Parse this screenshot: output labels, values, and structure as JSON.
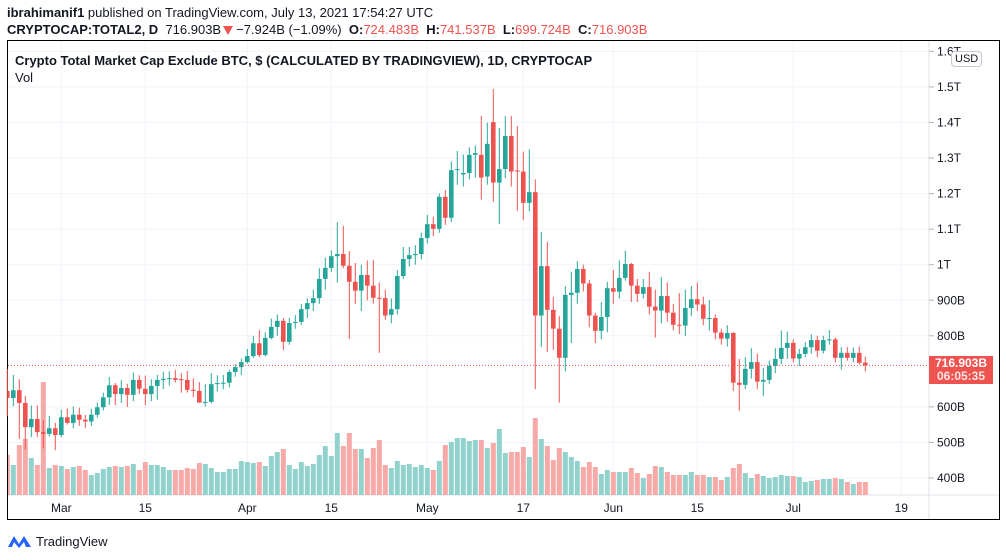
{
  "header": {
    "author": "ibrahimanif1",
    "published": " published on TradingView.com, July 13, 2021 17:54:27 UTC",
    "symbol": "CRYPTOCAP:TOTAL2, D",
    "last": "716.903B",
    "direction_icon": "down-triangle-icon",
    "change": "−7.924B (−1.09%)",
    "o_label": "O:",
    "o": "724.483B",
    "h_label": "H:",
    "h": "741.537B",
    "l_label": "L:",
    "l": "699.724B",
    "c_label": "C:",
    "c": "716.903B"
  },
  "legend": {
    "title": "Crypto Total Market Cap Exclude BTC, $ (CALCULATED BY TRADINGVIEW), 1D, CRYPTOCAP",
    "volume": "Vol"
  },
  "price_axis": {
    "currency": "USD",
    "last_price": "716.903B",
    "countdown": "06:05:35"
  },
  "footer": {
    "brand": "TradingView"
  },
  "colors": {
    "up": "#26a69a",
    "down": "#ef5350",
    "vol_up": "#92d2cc",
    "vol_down": "#f7a9a7",
    "grid": "#f0f3fa"
  },
  "chart_data": {
    "type": "candlestick",
    "title": "Crypto Total Market Cap Exclude BTC, $ (CALCULATED BY TRADINGVIEW), 1D, CRYPTOCAP",
    "units": "billions USD",
    "scale": "linear",
    "grid": true,
    "ylim": [
      360,
      1620
    ],
    "y_ticks": [
      {
        "value": 400,
        "label": "400B"
      },
      {
        "value": 500,
        "label": "500B"
      },
      {
        "value": 600,
        "label": "600B"
      },
      {
        "value": 800,
        "label": "800B"
      },
      {
        "value": 900,
        "label": "900B"
      },
      {
        "value": 1000,
        "label": "1T"
      },
      {
        "value": 1100,
        "label": "1.1T"
      },
      {
        "value": 1200,
        "label": "1.2T"
      },
      {
        "value": 1300,
        "label": "1.3T"
      },
      {
        "value": 1400,
        "label": "1.4T"
      },
      {
        "value": 1500,
        "label": "1.5T"
      },
      {
        "value": 1600,
        "label": "1.6T"
      }
    ],
    "x_ticks": [
      {
        "date": "2021-03-01",
        "label": "Mar"
      },
      {
        "date": "2021-03-15",
        "label": "15"
      },
      {
        "date": "2021-04-01",
        "label": "Apr"
      },
      {
        "date": "2021-04-15",
        "label": "15"
      },
      {
        "date": "2021-05-01",
        "label": "May"
      },
      {
        "date": "2021-05-17",
        "label": "17"
      },
      {
        "date": "2021-06-01",
        "label": "Jun"
      },
      {
        "date": "2021-06-15",
        "label": "15"
      },
      {
        "date": "2021-07-01",
        "label": "Jul"
      },
      {
        "date": "2021-07-19",
        "label": "19"
      }
    ],
    "columns": [
      "date",
      "open",
      "high",
      "low",
      "close",
      "relative_volume"
    ],
    "candles": [
      [
        "2021-02-20",
        645,
        707,
        574,
        625,
        40
      ],
      [
        "2021-02-21",
        625,
        690,
        602,
        647,
        30
      ],
      [
        "2021-02-22",
        647,
        678,
        510,
        611,
        50
      ],
      [
        "2021-02-23",
        611,
        631,
        480,
        543,
        56
      ],
      [
        "2021-02-24",
        543,
        604,
        515,
        566,
        37
      ],
      [
        "2021-02-25",
        566,
        604,
        515,
        529,
        30
      ],
      [
        "2021-02-26",
        529,
        563,
        483,
        524,
        113
      ],
      [
        "2021-02-27",
        524,
        575,
        517,
        540,
        27
      ],
      [
        "2021-02-28",
        540,
        555,
        478,
        521,
        30
      ],
      [
        "2021-03-01",
        521,
        592,
        515,
        571,
        29
      ],
      [
        "2021-03-02",
        571,
        596,
        550,
        555,
        26
      ],
      [
        "2021-03-03",
        555,
        601,
        540,
        578,
        28
      ],
      [
        "2021-03-04",
        578,
        598,
        547,
        564,
        29
      ],
      [
        "2021-03-05",
        564,
        578,
        540,
        559,
        25
      ],
      [
        "2021-03-06",
        559,
        595,
        546,
        578,
        20
      ],
      [
        "2021-03-07",
        578,
        612,
        570,
        599,
        22
      ],
      [
        "2021-03-08",
        599,
        640,
        590,
        627,
        26
      ],
      [
        "2021-03-09",
        627,
        684,
        606,
        661,
        28
      ],
      [
        "2021-03-10",
        661,
        667,
        605,
        636,
        29
      ],
      [
        "2021-03-11",
        636,
        675,
        612,
        653,
        28
      ],
      [
        "2021-03-12",
        653,
        665,
        600,
        634,
        29
      ],
      [
        "2021-03-13",
        634,
        697,
        616,
        676,
        31
      ],
      [
        "2021-03-14",
        676,
        689,
        636,
        651,
        25
      ],
      [
        "2021-03-15",
        651,
        688,
        605,
        636,
        33
      ],
      [
        "2021-03-16",
        636,
        678,
        616,
        659,
        30
      ],
      [
        "2021-03-17",
        659,
        690,
        620,
        676,
        30
      ],
      [
        "2021-03-18",
        676,
        699,
        650,
        679,
        28
      ],
      [
        "2021-03-19",
        679,
        700,
        660,
        681,
        25
      ],
      [
        "2021-03-20",
        681,
        704,
        669,
        676,
        25
      ],
      [
        "2021-03-21",
        678,
        695,
        640,
        676,
        25
      ],
      [
        "2021-03-22",
        676,
        701,
        640,
        648,
        27
      ],
      [
        "2021-03-23",
        648,
        680,
        627,
        645,
        26
      ],
      [
        "2021-03-24",
        645,
        670,
        622,
        612,
        32
      ],
      [
        "2021-03-25",
        612,
        664,
        601,
        614,
        31
      ],
      [
        "2021-03-26",
        614,
        695,
        610,
        664,
        27
      ],
      [
        "2021-03-27",
        664,
        689,
        643,
        667,
        23
      ],
      [
        "2021-03-28",
        667,
        690,
        650,
        668,
        23
      ],
      [
        "2021-03-29",
        668,
        705,
        655,
        698,
        26
      ],
      [
        "2021-03-30",
        698,
        720,
        685,
        712,
        26
      ],
      [
        "2021-03-31",
        712,
        736,
        690,
        726,
        34
      ],
      [
        "2021-04-01",
        726,
        763,
        722,
        743,
        33
      ],
      [
        "2021-04-02",
        743,
        800,
        738,
        779,
        32
      ],
      [
        "2021-04-03",
        779,
        816,
        740,
        746,
        33
      ],
      [
        "2021-04-04",
        746,
        810,
        742,
        794,
        29
      ],
      [
        "2021-04-05",
        794,
        848,
        790,
        825,
        39
      ],
      [
        "2021-04-06",
        825,
        860,
        800,
        842,
        43
      ],
      [
        "2021-04-07",
        842,
        850,
        760,
        783,
        46
      ],
      [
        "2021-04-08",
        783,
        850,
        775,
        836,
        30
      ],
      [
        "2021-04-09",
        836,
        858,
        820,
        839,
        26
      ],
      [
        "2021-04-10",
        839,
        890,
        830,
        875,
        33
      ],
      [
        "2021-04-11",
        875,
        905,
        850,
        892,
        29
      ],
      [
        "2021-04-12",
        892,
        930,
        870,
        906,
        31
      ],
      [
        "2021-04-13",
        906,
        990,
        890,
        960,
        40
      ],
      [
        "2021-04-14",
        960,
        1020,
        930,
        991,
        49
      ],
      [
        "2021-04-15",
        991,
        1040,
        980,
        1024,
        39
      ],
      [
        "2021-04-16",
        1024,
        1120,
        950,
        1030,
        62
      ],
      [
        "2021-04-17",
        1030,
        1109,
        990,
        997,
        49
      ],
      [
        "2021-04-18",
        997,
        1038,
        791,
        952,
        62
      ],
      [
        "2021-04-19",
        952,
        1005,
        890,
        927,
        46
      ],
      [
        "2021-04-20",
        927,
        1000,
        870,
        971,
        46
      ],
      [
        "2021-04-21",
        971,
        1012,
        900,
        941,
        37
      ],
      [
        "2021-04-22",
        941,
        1014,
        890,
        907,
        47
      ],
      [
        "2021-04-23",
        907,
        950,
        752,
        906,
        55
      ],
      [
        "2021-04-24",
        906,
        930,
        845,
        857,
        30
      ],
      [
        "2021-04-25",
        859,
        905,
        835,
        875,
        27
      ],
      [
        "2021-04-26",
        875,
        985,
        860,
        968,
        34
      ],
      [
        "2021-04-27",
        968,
        1050,
        960,
        1016,
        30
      ],
      [
        "2021-04-28",
        1016,
        1050,
        995,
        1027,
        31
      ],
      [
        "2021-04-29",
        1027,
        1055,
        1000,
        1030,
        28
      ],
      [
        "2021-04-30",
        1030,
        1090,
        1015,
        1075,
        30
      ],
      [
        "2021-05-01",
        1075,
        1140,
        1060,
        1114,
        27
      ],
      [
        "2021-05-02",
        1114,
        1135,
        1080,
        1101,
        25
      ],
      [
        "2021-05-03",
        1101,
        1200,
        1090,
        1191,
        34
      ],
      [
        "2021-05-04",
        1191,
        1210,
        1112,
        1132,
        50
      ],
      [
        "2021-05-05",
        1132,
        1290,
        1120,
        1266,
        53
      ],
      [
        "2021-05-06",
        1266,
        1320,
        1225,
        1269,
        57
      ],
      [
        "2021-05-07",
        1254,
        1310,
        1220,
        1258,
        57
      ],
      [
        "2021-05-08",
        1258,
        1330,
        1240,
        1309,
        54
      ],
      [
        "2021-05-09",
        1309,
        1335,
        1245,
        1314,
        55
      ],
      [
        "2021-05-10",
        1309,
        1418,
        1183,
        1245,
        55
      ],
      [
        "2021-05-11",
        1248,
        1400,
        1225,
        1340,
        47
      ],
      [
        "2021-05-12",
        1401,
        1494,
        1177,
        1231,
        52
      ],
      [
        "2021-05-13",
        1231,
        1385,
        1114,
        1269,
        66
      ],
      [
        "2021-05-14",
        1269,
        1418,
        1243,
        1362,
        42
      ],
      [
        "2021-05-15",
        1362,
        1418,
        1220,
        1262,
        43
      ],
      [
        "2021-05-16",
        1265,
        1390,
        1152,
        1262,
        43
      ],
      [
        "2021-05-17",
        1262,
        1318,
        1125,
        1174,
        48
      ],
      [
        "2021-05-18",
        1174,
        1324,
        1150,
        1204,
        38
      ],
      [
        "2021-05-19",
        1204,
        1240,
        650,
        857,
        77
      ],
      [
        "2021-05-20",
        857,
        1092,
        769,
        996,
        56
      ],
      [
        "2021-05-21",
        996,
        1064,
        755,
        873,
        49
      ],
      [
        "2021-05-22",
        873,
        910,
        760,
        820,
        35
      ],
      [
        "2021-05-23",
        820,
        855,
        612,
        738,
        47
      ],
      [
        "2021-05-24",
        738,
        940,
        700,
        915,
        43
      ],
      [
        "2021-05-25",
        915,
        980,
        780,
        921,
        38
      ],
      [
        "2021-05-26",
        921,
        1010,
        890,
        988,
        34
      ],
      [
        "2021-05-27",
        988,
        1000,
        925,
        947,
        28
      ],
      [
        "2021-05-28",
        947,
        957,
        824,
        857,
        33
      ],
      [
        "2021-05-29",
        857,
        865,
        780,
        814,
        28
      ],
      [
        "2021-05-30",
        814,
        895,
        790,
        853,
        21
      ],
      [
        "2021-05-31",
        853,
        952,
        810,
        934,
        25
      ],
      [
        "2021-06-01",
        934,
        985,
        890,
        924,
        23
      ],
      [
        "2021-06-02",
        924,
        1012,
        905,
        963,
        23
      ],
      [
        "2021-06-03",
        963,
        1040,
        955,
        1002,
        23
      ],
      [
        "2021-06-04",
        1002,
        1005,
        895,
        941,
        27
      ],
      [
        "2021-06-05",
        941,
        960,
        895,
        918,
        22
      ],
      [
        "2021-06-06",
        918,
        960,
        905,
        937,
        17
      ],
      [
        "2021-06-07",
        937,
        980,
        860,
        882,
        21
      ],
      [
        "2021-06-08",
        882,
        930,
        795,
        871,
        29
      ],
      [
        "2021-06-09",
        871,
        965,
        835,
        912,
        28
      ],
      [
        "2021-06-10",
        912,
        950,
        840,
        865,
        23
      ],
      [
        "2021-06-11",
        865,
        890,
        815,
        831,
        20
      ],
      [
        "2021-06-12",
        831,
        920,
        805,
        829,
        20
      ],
      [
        "2021-06-13",
        829,
        930,
        800,
        878,
        20
      ],
      [
        "2021-06-14",
        878,
        940,
        855,
        903,
        23
      ],
      [
        "2021-06-15",
        903,
        950,
        870,
        888,
        20
      ],
      [
        "2021-06-16",
        888,
        910,
        830,
        848,
        20
      ],
      [
        "2021-06-17",
        848,
        900,
        815,
        850,
        18
      ],
      [
        "2021-06-18",
        850,
        860,
        790,
        809,
        18
      ],
      [
        "2021-06-19",
        809,
        820,
        775,
        792,
        15
      ],
      [
        "2021-06-20",
        792,
        830,
        770,
        808,
        18
      ],
      [
        "2021-06-21",
        808,
        810,
        645,
        668,
        27
      ],
      [
        "2021-06-22",
        668,
        735,
        589,
        662,
        31
      ],
      [
        "2021-06-23",
        662,
        740,
        650,
        707,
        22
      ],
      [
        "2021-06-24",
        707,
        765,
        680,
        726,
        17
      ],
      [
        "2021-06-25",
        726,
        750,
        650,
        671,
        21
      ],
      [
        "2021-06-26",
        671,
        710,
        630,
        676,
        19
      ],
      [
        "2021-06-27",
        676,
        730,
        665,
        715,
        17
      ],
      [
        "2021-06-28",
        715,
        765,
        695,
        735,
        18
      ],
      [
        "2021-06-29",
        735,
        815,
        720,
        766,
        20
      ],
      [
        "2021-06-30",
        766,
        812,
        735,
        780,
        19
      ],
      [
        "2021-07-01",
        780,
        790,
        725,
        736,
        19
      ],
      [
        "2021-07-02",
        736,
        763,
        715,
        749,
        18
      ],
      [
        "2021-07-03",
        749,
        782,
        740,
        768,
        13
      ],
      [
        "2021-07-04",
        768,
        804,
        750,
        788,
        14
      ],
      [
        "2021-07-05",
        788,
        800,
        740,
        758,
        15
      ],
      [
        "2021-07-06",
        758,
        800,
        750,
        788,
        16
      ],
      [
        "2021-07-07",
        788,
        816,
        775,
        790,
        16
      ],
      [
        "2021-07-08",
        790,
        795,
        725,
        738,
        17
      ],
      [
        "2021-07-09",
        738,
        768,
        705,
        752,
        16
      ],
      [
        "2021-07-10",
        752,
        768,
        730,
        738,
        13
      ],
      [
        "2021-07-11",
        738,
        767,
        725,
        752,
        11
      ],
      [
        "2021-07-12",
        752,
        770,
        720,
        724,
        13
      ],
      [
        "2021-07-13",
        724.483,
        741.537,
        699.724,
        716.903,
        13
      ]
    ]
  }
}
